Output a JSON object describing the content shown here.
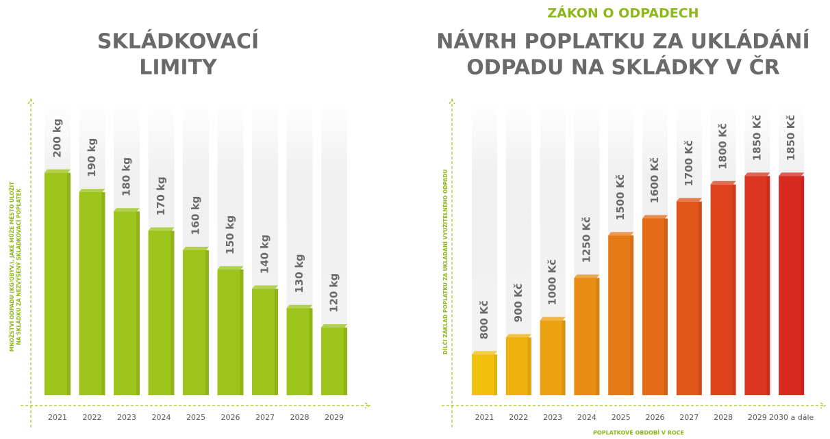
{
  "chart_data": [
    {
      "type": "bar",
      "title": [
        "SKLÁDKOVACÍ",
        "LIMITY"
      ],
      "y_label": [
        "MNOŽSTVÍ ODPADU (KG/OBYV.), JAKÉ MŮŽE MĚSTO ULOŽIT",
        "NA SKLÁDKU ZA NEZVÝŠENÝ SKLÁDKOVACÍ POPLATEK"
      ],
      "categories": [
        "2021",
        "2022",
        "2023",
        "2024",
        "2025",
        "2026",
        "2027",
        "2028",
        "2029"
      ],
      "values": [
        200,
        190,
        180,
        170,
        160,
        150,
        140,
        130,
        120
      ],
      "value_labels": [
        "200 kg",
        "190 kg",
        "180 kg",
        "170 kg",
        "160 kg",
        "150 kg",
        "140 kg",
        "130 kg",
        "120 kg"
      ],
      "colors": [
        "#9dc41b",
        "#9dc41b",
        "#9dc41b",
        "#9dc41b",
        "#9dc41b",
        "#9dc41b",
        "#9dc41b",
        "#9dc41b",
        "#9dc41b"
      ],
      "ylim": [
        85,
        237
      ]
    },
    {
      "type": "bar",
      "supertitle": "ZÁKON O ODPADECH",
      "title": [
        "NÁVRH POPLATKU ZA UKLÁDÁNÍ",
        "ODPADU NA SKLÁDKY V ČR"
      ],
      "y_label": [
        "DÍLČÍ ZÁKLAD POPLATKU ZA UKLÁDÁNÍ VYUŽITELNÉHO ODPADU"
      ],
      "x_label": "POPLATKOVÉ OBDOBÍ V ROCE",
      "categories": [
        "2021",
        "2022",
        "2023",
        "2024",
        "2025",
        "2026",
        "2027",
        "2028",
        "2029",
        "2030 a dále"
      ],
      "values": [
        800,
        900,
        1000,
        1250,
        1500,
        1600,
        1700,
        1800,
        1850,
        1850
      ],
      "value_labels": [
        "800 Kč",
        "900 Kč",
        "1000 Kč",
        "1250 Kč",
        "1500 Kč",
        "1600 Kč",
        "1700 Kč",
        "1800 Kč",
        "1850 Kč",
        "1850 Kč"
      ],
      "colors": [
        "#f2c10f",
        "#efb10f",
        "#eca111",
        "#e98d14",
        "#e67a16",
        "#e46a18",
        "#e1561b",
        "#de431e",
        "#db3420",
        "#d92a22"
      ],
      "ylim": [
        560,
        2290
      ]
    }
  ]
}
